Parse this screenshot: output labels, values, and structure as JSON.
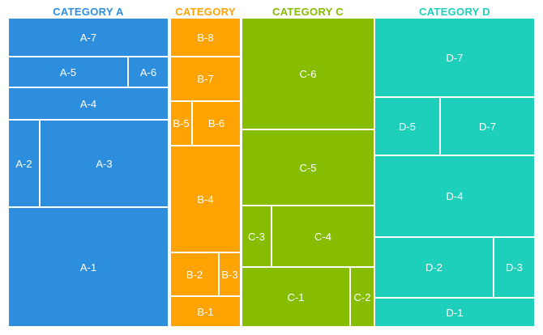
{
  "chart_data": {
    "type": "treemap",
    "categories": [
      {
        "name": "CATEGORY A",
        "color": "#2e8ede",
        "items": [
          "A-7",
          "A-5",
          "A-6",
          "A-4",
          "A-2",
          "A-3",
          "A-1"
        ]
      },
      {
        "name": "CATEGORY B",
        "color": "#ffa302",
        "items": [
          "B-8",
          "B-7",
          "B-5",
          "B-6",
          "B-4",
          "B-2",
          "B-3",
          "B-1"
        ]
      },
      {
        "name": "CATEGORY C",
        "color": "#86bd01",
        "items": [
          "C-6",
          "C-5",
          "C-3",
          "C-4",
          "C-1",
          "C-2"
        ]
      },
      {
        "name": "CATEGORY D",
        "color": "#1ecfbc",
        "items": [
          "D-7",
          "D-5",
          "D-7",
          "D-4",
          "D-2",
          "D-3",
          "D-1"
        ]
      }
    ]
  }
}
